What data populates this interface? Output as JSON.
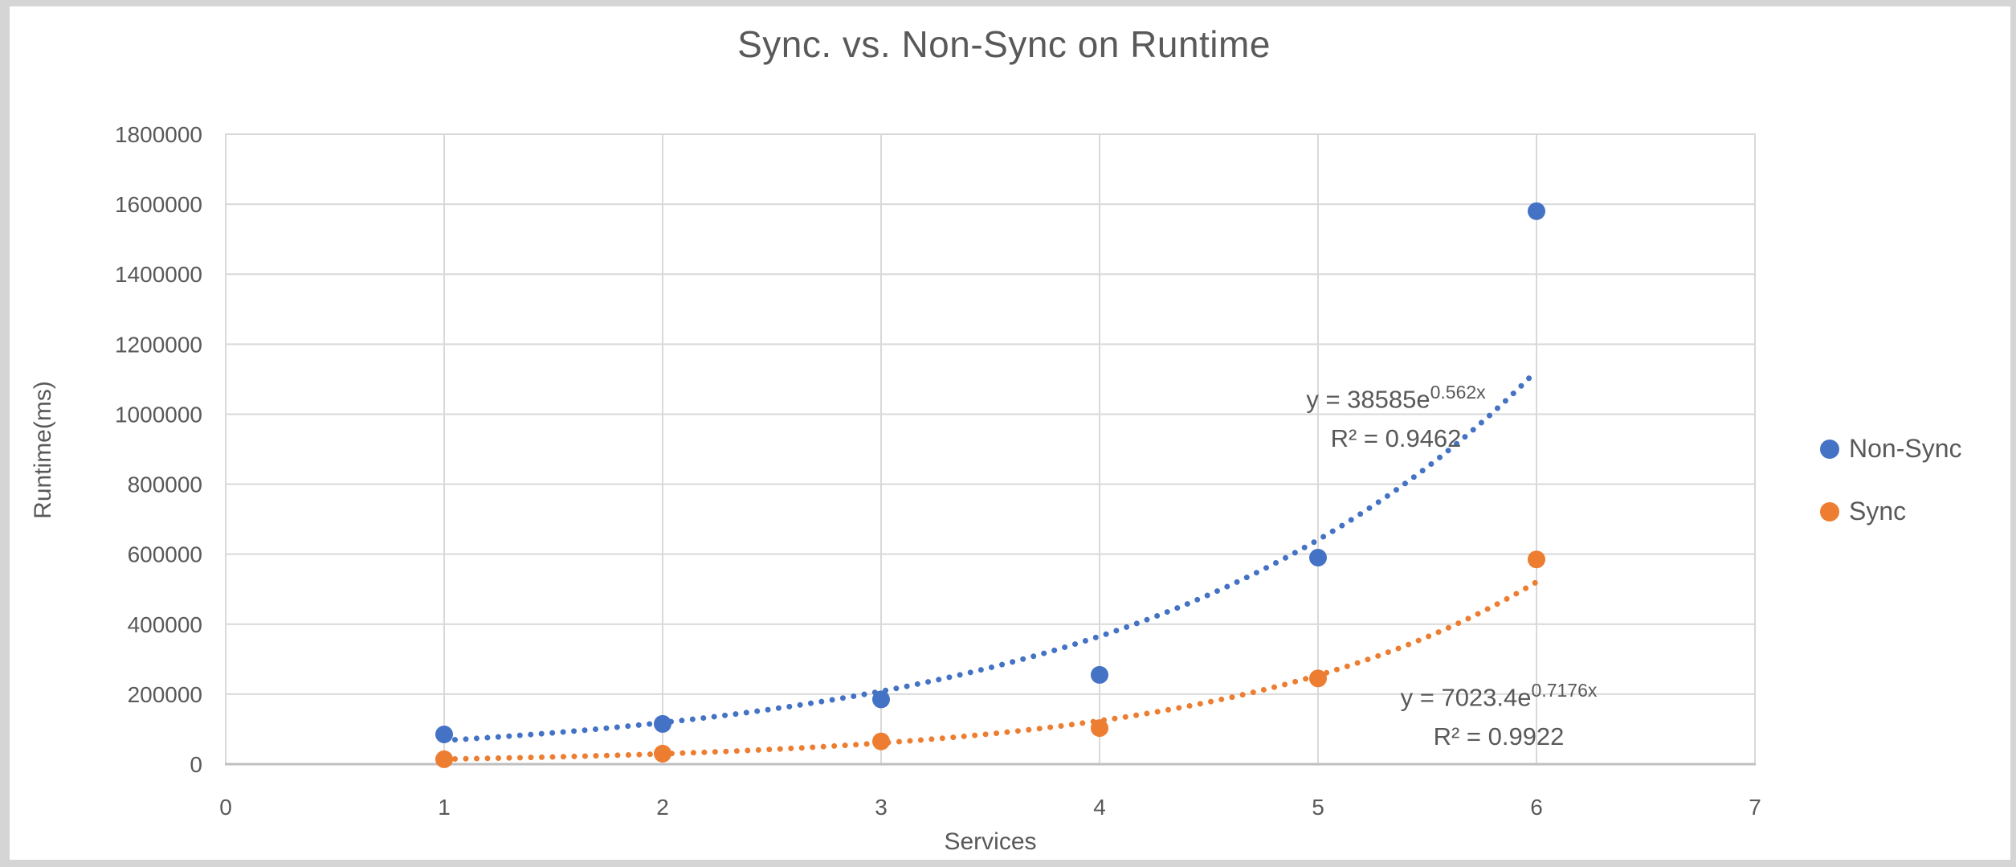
{
  "chart_data": {
    "type": "scatter",
    "title": "Sync. vs. Non-Sync on  Runtime",
    "xlabel": "Services",
    "ylabel": "Runtime(ms)",
    "xlim": [
      0,
      7
    ],
    "ylim": [
      0,
      1800000
    ],
    "x_ticks": [
      0,
      1,
      2,
      3,
      4,
      5,
      6,
      7
    ],
    "y_ticks": [
      0,
      200000,
      400000,
      600000,
      800000,
      1000000,
      1200000,
      1400000,
      1600000,
      1800000
    ],
    "grid": true,
    "legend_position": "right",
    "x": [
      1,
      2,
      3,
      4,
      5,
      6
    ],
    "series": [
      {
        "name": "Non-Sync",
        "color": "#4472C4",
        "values": [
          85000,
          115000,
          185000,
          255000,
          590000,
          1580000
        ],
        "trendline": {
          "type": "exponential",
          "a": 38585,
          "b": 0.562,
          "x_start": 1,
          "x_end": 6,
          "equation_prefix": "y = 38585e",
          "equation_exponent": "0.562x",
          "r2_label": "R² = 0.9462"
        }
      },
      {
        "name": "Sync",
        "color": "#ED7D31",
        "values": [
          14000,
          30000,
          65000,
          103000,
          245000,
          585000
        ],
        "trendline": {
          "type": "exponential",
          "a": 7023.4,
          "b": 0.7176,
          "x_start": 1,
          "x_end": 6,
          "equation_prefix": "y = 7023.4e",
          "equation_exponent": "0.7176x",
          "r2_label": "R² = 0.9922"
        }
      }
    ],
    "colors": {
      "gridline": "#D9D9D9",
      "axis_line": "#BFBFBF",
      "text": "#595959",
      "plot_border": "#D9D9D9"
    }
  }
}
